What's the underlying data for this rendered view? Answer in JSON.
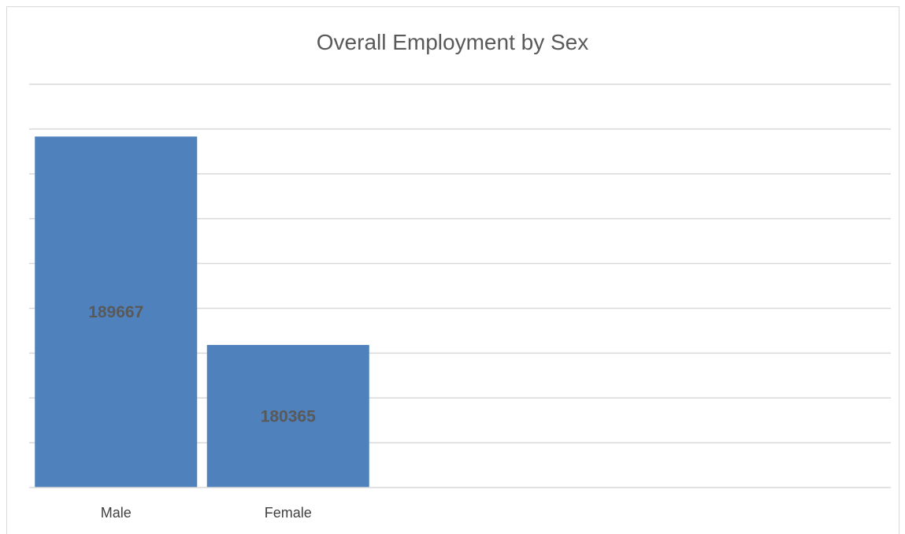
{
  "chart_data": {
    "type": "bar",
    "title": "Overall Employment by Sex",
    "categories": [
      "Male",
      "Female"
    ],
    "values": [
      189667,
      180365
    ],
    "data_labels": [
      "189667",
      "180365"
    ],
    "xlabel": "",
    "ylabel": "",
    "ylim": [
      174000,
      192000
    ],
    "y_gridline_step": 2000,
    "y_tick_labels_visible": false,
    "grid": true,
    "legend": "none",
    "bar_color": "#4f81bd",
    "gridline_color": "#d9d9d9",
    "data_label_color": "#595959"
  }
}
